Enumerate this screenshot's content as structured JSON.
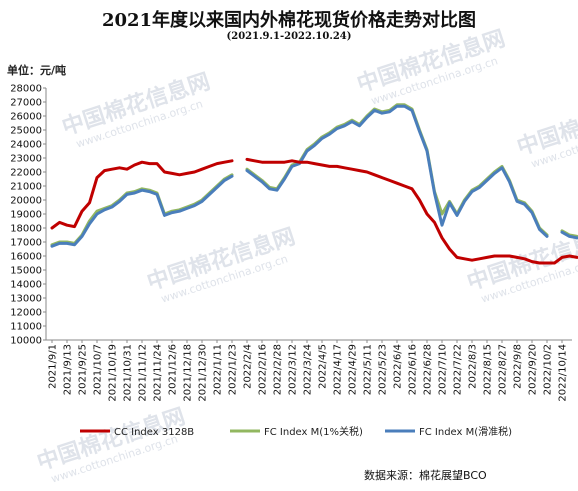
{
  "chart_data": {
    "type": "line",
    "title": "2021年度以来国内外棉花现货价格走势对比图",
    "subtitle": "(2021.9.1-2022.10.24)",
    "ylabel": "单位：元/吨",
    "source": "数据来源：棉花展望BCO",
    "ylim": [
      10000,
      28000
    ],
    "ytick_step": 1000,
    "yticks": [
      "10000",
      "11000",
      "12000",
      "13000",
      "14000",
      "15000",
      "16000",
      "17000",
      "18000",
      "19000",
      "20000",
      "21000",
      "22000",
      "23000",
      "24000",
      "25000",
      "26000",
      "27000",
      "28000"
    ],
    "x_tick_labels": [
      "2021/9/1",
      "2021/9/13",
      "2021/9/25",
      "2021/10/7",
      "2021/10/19",
      "2021/10/31",
      "2021/11/12",
      "2021/11/24",
      "2021/12/6",
      "2021/12/18",
      "2021/12/30",
      "2022/1/11",
      "2022/1/23",
      "2022/2/4",
      "2022/2/16",
      "2022/2/28",
      "2022/3/12",
      "2022/3/24",
      "2022/4/5",
      "2022/4/17",
      "2022/4/29",
      "2022/5/11",
      "2022/5/23",
      "2022/6/4",
      "2022/6/16",
      "2022/6/28",
      "2022/7/10",
      "2022/7/22",
      "2022/8/3",
      "2022/8/15",
      "2022/8/27",
      "2022/9/8",
      "2022/9/20",
      "2022/10/2",
      "2022/10/14"
    ],
    "x": [
      "2021/9/1",
      "2021/9/7",
      "2021/9/13",
      "2021/9/19",
      "2021/9/25",
      "2021/10/1",
      "2021/10/7",
      "2021/10/13",
      "2021/10/19",
      "2021/10/25",
      "2021/10/31",
      "2021/11/6",
      "2021/11/12",
      "2021/11/18",
      "2021/11/24",
      "2021/11/30",
      "2021/12/6",
      "2021/12/12",
      "2021/12/18",
      "2021/12/24",
      "2021/12/30",
      "2022/1/5",
      "2022/1/11",
      "2022/1/17",
      "2022/1/23",
      "2022/1/29",
      "2022/2/4",
      "2022/2/10",
      "2022/2/16",
      "2022/2/22",
      "2022/2/28",
      "2022/3/6",
      "2022/3/12",
      "2022/3/18",
      "2022/3/24",
      "2022/3/30",
      "2022/4/5",
      "2022/4/11",
      "2022/4/17",
      "2022/4/23",
      "2022/4/29",
      "2022/5/5",
      "2022/5/11",
      "2022/5/17",
      "2022/5/23",
      "2022/5/29",
      "2022/6/4",
      "2022/6/10",
      "2022/6/16",
      "2022/6/22",
      "2022/6/28",
      "2022/7/4",
      "2022/7/10",
      "2022/7/16",
      "2022/7/22",
      "2022/7/28",
      "2022/8/3",
      "2022/8/9",
      "2022/8/15",
      "2022/8/21",
      "2022/8/27",
      "2022/9/2",
      "2022/9/8",
      "2022/9/14",
      "2022/9/20",
      "2022/9/26",
      "2022/10/2",
      "2022/10/8",
      "2022/10/14",
      "2022/10/20",
      "2022/10/24"
    ],
    "series": [
      {
        "name": "CC Index 3128B",
        "color": "#c00000",
        "values": [
          18000,
          18400,
          18200,
          18100,
          19200,
          19800,
          21600,
          22100,
          22200,
          22300,
          22200,
          22500,
          22700,
          22600,
          22600,
          22000,
          21900,
          21800,
          21900,
          22000,
          22200,
          22400,
          22600,
          22700,
          22800,
          null,
          22900,
          22800,
          22700,
          22700,
          22700,
          22700,
          22800,
          22700,
          22700,
          22600,
          22500,
          22400,
          22400,
          22300,
          22200,
          22100,
          22000,
          21800,
          21600,
          21400,
          21200,
          21000,
          20800,
          20000,
          19000,
          18400,
          17300,
          16500,
          15900,
          15800,
          15700,
          15800,
          15900,
          16000,
          16000,
          16000,
          15900,
          15800,
          15600,
          15500,
          15500,
          15500,
          15900,
          16000,
          15900
        ]
      },
      {
        "name": "FC Index M(1%关税)",
        "color": "#92b760",
        "values": [
          16800,
          17000,
          17000,
          16900,
          17500,
          18500,
          19200,
          19400,
          19600,
          20000,
          20500,
          20600,
          20800,
          20700,
          20500,
          19000,
          19200,
          19300,
          19500,
          19700,
          20000,
          20500,
          21000,
          21500,
          21800,
          null,
          22200,
          21800,
          21400,
          20900,
          20800,
          21600,
          22500,
          22700,
          23600,
          24000,
          24500,
          24800,
          25200,
          25400,
          25700,
          25400,
          26000,
          26500,
          26300,
          26400,
          26800,
          26800,
          26500,
          25000,
          23600,
          20600,
          19000,
          19900,
          19000,
          20000,
          20700,
          21000,
          21500,
          22000,
          22400,
          21400,
          20000,
          19800,
          19200,
          18000,
          17500,
          null,
          17800,
          17500,
          17400
        ]
      },
      {
        "name": "FC Index M(滑准税)",
        "color": "#4a7ebb",
        "values": [
          16700,
          16900,
          16900,
          16800,
          17400,
          18300,
          19000,
          19300,
          19500,
          19900,
          20400,
          20500,
          20700,
          20600,
          20400,
          18900,
          19100,
          19200,
          19400,
          19600,
          19900,
          20400,
          20900,
          21400,
          21700,
          null,
          22100,
          21700,
          21300,
          20800,
          20700,
          21500,
          22400,
          22600,
          23500,
          23900,
          24400,
          24700,
          25100,
          25300,
          25600,
          25300,
          25900,
          26400,
          26200,
          26300,
          26700,
          26700,
          26400,
          24900,
          23500,
          20500,
          18200,
          19800,
          18900,
          19900,
          20600,
          20900,
          21400,
          21900,
          22300,
          21300,
          19900,
          19700,
          19100,
          17900,
          17400,
          null,
          17700,
          17400,
          17300
        ]
      }
    ],
    "watermark_text": "中国棉花信息网",
    "watermark_url": "www.cottonchina.org.cn"
  }
}
